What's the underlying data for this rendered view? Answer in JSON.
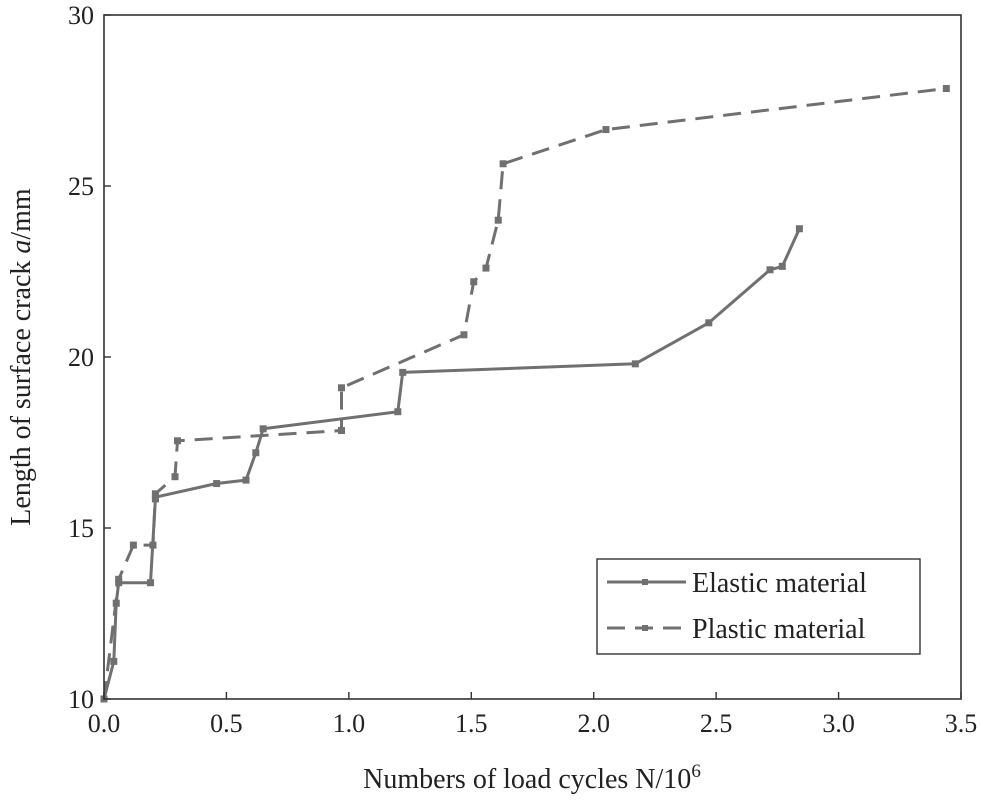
{
  "chart_data": {
    "type": "line",
    "xlabel": "Numbers of load cycles N/10",
    "xlabel_superscript": "6",
    "ylabel_prefix": "Length of surface crack ",
    "ylabel_italic": "a",
    "ylabel_suffix": "/mm",
    "xlim": [
      0,
      3.5
    ],
    "ylim": [
      10,
      30
    ],
    "xticks": [
      0,
      0.5,
      1.0,
      1.5,
      2.0,
      2.5,
      3.0,
      3.5
    ],
    "xtick_labels": [
      "0.0",
      "0.5",
      "1.0",
      "1.5",
      "2.0",
      "2.5",
      "3.0",
      "3.5"
    ],
    "yticks": [
      10,
      15,
      20,
      25,
      30
    ],
    "ytick_labels": [
      "10",
      "15",
      "20",
      "25",
      "30"
    ],
    "grid": false,
    "legend_position": "bottom-right",
    "series_color": "#707070",
    "series": [
      {
        "name": "Elastic material",
        "style": "solid",
        "x": [
          0.0,
          0.04,
          0.05,
          0.06,
          0.19,
          0.21,
          0.21,
          0.46,
          0.58,
          0.62,
          0.65,
          1.2,
          1.22,
          2.17,
          2.47,
          2.72,
          2.77,
          2.84
        ],
        "y": [
          10.0,
          11.1,
          12.8,
          13.4,
          13.4,
          15.85,
          15.9,
          16.3,
          16.4,
          17.2,
          17.9,
          18.4,
          19.55,
          19.8,
          21.0,
          22.55,
          22.65,
          23.75
        ]
      },
      {
        "name": "Plastic material",
        "style": "dashed",
        "x": [
          0.0,
          0.06,
          0.12,
          0.2,
          0.21,
          0.29,
          0.3,
          0.97,
          0.97,
          1.47,
          1.51,
          1.56,
          1.61,
          1.63,
          2.05,
          3.44
        ],
        "y": [
          10.0,
          13.5,
          14.5,
          14.5,
          16.0,
          16.5,
          17.55,
          17.85,
          19.1,
          20.65,
          22.2,
          22.6,
          24.0,
          25.65,
          26.65,
          27.85
        ]
      }
    ]
  }
}
